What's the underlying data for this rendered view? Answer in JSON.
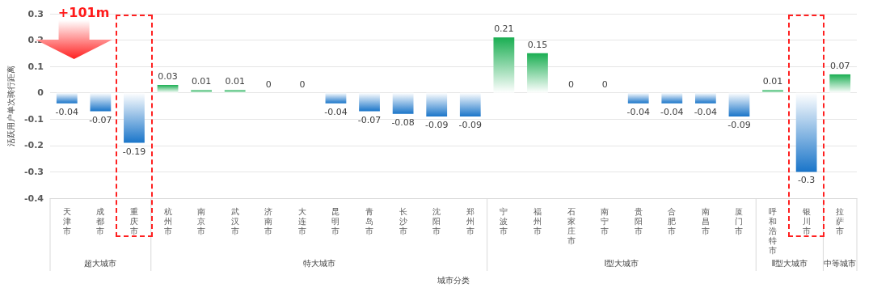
{
  "chart_data": {
    "type": "bar",
    "xlabel": "城市分类",
    "ylabel": "活跃用户单次骑行距离",
    "categories": [
      "天津市",
      "成都市",
      "重庆市",
      "杭州市",
      "南京市",
      "武汉市",
      "济南市",
      "大连市",
      "昆明市",
      "青岛市",
      "长沙市",
      "沈阳市",
      "郑州市",
      "宁波市",
      "福州市",
      "石家庄市",
      "南宁市",
      "贵阳市",
      "合肥市",
      "南昌市",
      "厦门市",
      "呼和浩特市",
      "银川市",
      "拉萨市"
    ],
    "values": [
      -0.04,
      -0.07,
      -0.19,
      0.03,
      0.01,
      0.01,
      0,
      0,
      -0.04,
      -0.07,
      -0.08,
      -0.09,
      -0.09,
      0.21,
      0.15,
      0,
      0,
      -0.04,
      -0.04,
      -0.04,
      -0.09,
      0.01,
      -0.3,
      0.07
    ],
    "colors": [
      "#1a75c9",
      "#1a75c9",
      "#1a75c9",
      "#1aae52",
      "#1aae52",
      "#1aae52",
      "#1aae52",
      "#1aae52",
      "#1a75c9",
      "#1a75c9",
      "#1a75c9",
      "#1a75c9",
      "#1a75c9",
      "#1aae52",
      "#1aae52",
      "#1aae52",
      "#1aae52",
      "#1a75c9",
      "#1a75c9",
      "#1a75c9",
      "#1a75c9",
      "#1aae52",
      "#1a75c9",
      "#1aae52"
    ],
    "ylim": [
      -0.4,
      0.3
    ],
    "yticks": [
      -0.4,
      -0.3,
      -0.2,
      -0.1,
      0,
      0.1,
      0.2,
      0.3
    ],
    "grid": "y",
    "data_labels": true,
    "annotations": [
      "+101m",
      "超大城市",
      "特大城市",
      "Ⅰ型大城市",
      "Ⅱ型大城市",
      "中等城市"
    ]
  }
}
